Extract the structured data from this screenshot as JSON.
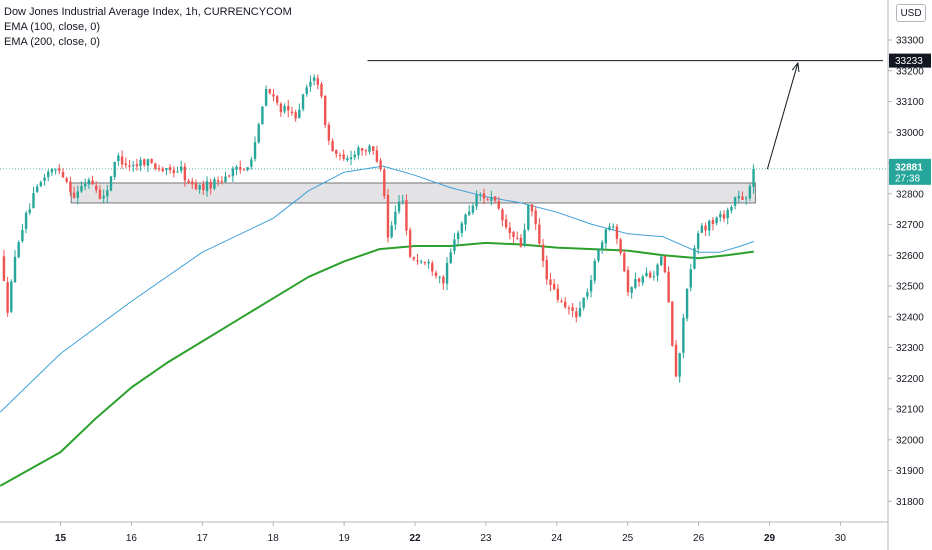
{
  "legend": {
    "symbol": "Dow Jones Industrial Average Index, 1h, CURRENCYCOM",
    "ema100": "EMA (100, close, 0)",
    "ema200": "EMA (200, close, 0)"
  },
  "currency_button": "USD",
  "price_labels": {
    "target": "33233",
    "last": "32881",
    "countdown": "27:38"
  },
  "colors": {
    "up": "#26a69a",
    "down": "#ef5350",
    "ema100": "#3fa0d8",
    "ema200": "#2ca02c",
    "zone_fill": "#d9d9de",
    "target_label_bg": "#131722",
    "last_label_bg": "#26a69a"
  },
  "chart_data": {
    "type": "candlestick",
    "symbol": "Dow Jones Industrial Average Index",
    "interval": "1h",
    "source": "CURRENCYCOM",
    "y_ticks": [
      31800,
      31900,
      32000,
      32100,
      32200,
      32300,
      32400,
      32500,
      32600,
      32700,
      32800,
      32900,
      33000,
      33100,
      33200,
      33300
    ],
    "ylim": [
      31760,
      33400
    ],
    "x_ticks": [
      {
        "label": "15",
        "pos": 0,
        "bold": true
      },
      {
        "label": "16",
        "pos": 1,
        "bold": false
      },
      {
        "label": "17",
        "pos": 2,
        "bold": false
      },
      {
        "label": "18",
        "pos": 3,
        "bold": false
      },
      {
        "label": "19",
        "pos": 4,
        "bold": false
      },
      {
        "label": "22",
        "pos": 5,
        "bold": true
      },
      {
        "label": "23",
        "pos": 6,
        "bold": false
      },
      {
        "label": "24",
        "pos": 7,
        "bold": false
      },
      {
        "label": "25",
        "pos": 8,
        "bold": false
      },
      {
        "label": "26",
        "pos": 9,
        "bold": false
      },
      {
        "label": "29",
        "pos": 10,
        "bold": true
      },
      {
        "label": "30",
        "pos": 11,
        "bold": false
      }
    ],
    "price_path": [
      [
        -0.85,
        32600
      ],
      [
        -0.75,
        32420
      ],
      [
        -0.6,
        32650
      ],
      [
        -0.4,
        32780
      ],
      [
        -0.2,
        32870
      ],
      [
        0.0,
        32880
      ],
      [
        0.2,
        32790
      ],
      [
        0.4,
        32850
      ],
      [
        0.6,
        32780
      ],
      [
        0.8,
        32920
      ],
      [
        1.0,
        32890
      ],
      [
        1.2,
        32910
      ],
      [
        1.5,
        32870
      ],
      [
        1.7,
        32880
      ],
      [
        1.8,
        32830
      ],
      [
        2.0,
        32820
      ],
      [
        2.2,
        32840
      ],
      [
        2.4,
        32870
      ],
      [
        2.6,
        32880
      ],
      [
        2.7,
        32930
      ],
      [
        2.8,
        33020
      ],
      [
        2.9,
        33140
      ],
      [
        3.1,
        33080
      ],
      [
        3.3,
        33050
      ],
      [
        3.5,
        33150
      ],
      [
        3.6,
        33200
      ],
      [
        3.7,
        33080
      ],
      [
        3.8,
        32950
      ],
      [
        4.0,
        32900
      ],
      [
        4.2,
        32950
      ],
      [
        4.4,
        32940
      ],
      [
        4.55,
        32880
      ],
      [
        4.6,
        32640
      ],
      [
        4.75,
        32760
      ],
      [
        4.85,
        32800
      ],
      [
        4.9,
        32600
      ],
      [
        5.2,
        32570
      ],
      [
        5.4,
        32520
      ],
      [
        5.6,
        32680
      ],
      [
        5.9,
        32800
      ],
      [
        6.1,
        32780
      ],
      [
        6.3,
        32680
      ],
      [
        6.5,
        32630
      ],
      [
        6.6,
        32760
      ],
      [
        6.7,
        32700
      ],
      [
        6.8,
        32580
      ],
      [
        6.9,
        32500
      ],
      [
        7.1,
        32430
      ],
      [
        7.3,
        32410
      ],
      [
        7.5,
        32530
      ],
      [
        7.6,
        32640
      ],
      [
        7.8,
        32710
      ],
      [
        7.9,
        32620
      ],
      [
        8.0,
        32490
      ],
      [
        8.2,
        32530
      ],
      [
        8.4,
        32550
      ],
      [
        8.5,
        32600
      ],
      [
        8.55,
        32500
      ],
      [
        8.6,
        32390
      ],
      [
        8.65,
        32250
      ],
      [
        8.7,
        32180
      ],
      [
        8.8,
        32450
      ],
      [
        8.9,
        32560
      ],
      [
        9.0,
        32680
      ],
      [
        9.2,
        32710
      ],
      [
        9.4,
        32740
      ],
      [
        9.55,
        32800
      ],
      [
        9.65,
        32760
      ],
      [
        9.75,
        32840
      ],
      [
        9.78,
        32881
      ]
    ],
    "ema100": [
      [
        -0.85,
        32090
      ],
      [
        0.0,
        32280
      ],
      [
        1.0,
        32450
      ],
      [
        2.0,
        32610
      ],
      [
        3.0,
        32720
      ],
      [
        3.5,
        32810
      ],
      [
        4.0,
        32870
      ],
      [
        4.55,
        32890
      ],
      [
        5.0,
        32860
      ],
      [
        5.5,
        32820
      ],
      [
        6.0,
        32790
      ],
      [
        6.5,
        32770
      ],
      [
        7.0,
        32740
      ],
      [
        7.5,
        32700
      ],
      [
        8.0,
        32670
      ],
      [
        8.5,
        32660
      ],
      [
        9.0,
        32610
      ],
      [
        9.3,
        32610
      ],
      [
        9.6,
        32630
      ],
      [
        9.78,
        32645
      ]
    ],
    "ema200": [
      [
        -0.85,
        31850
      ],
      [
        0.0,
        31960
      ],
      [
        0.5,
        32070
      ],
      [
        1.0,
        32170
      ],
      [
        1.5,
        32250
      ],
      [
        2.0,
        32320
      ],
      [
        2.5,
        32390
      ],
      [
        3.0,
        32460
      ],
      [
        3.5,
        32530
      ],
      [
        4.0,
        32580
      ],
      [
        4.5,
        32620
      ],
      [
        5.0,
        32630
      ],
      [
        5.5,
        32630
      ],
      [
        6.0,
        32640
      ],
      [
        6.5,
        32635
      ],
      [
        7.0,
        32625
      ],
      [
        7.5,
        32620
      ],
      [
        8.0,
        32615
      ],
      [
        8.5,
        32600
      ],
      [
        9.0,
        32590
      ],
      [
        9.4,
        32600
      ],
      [
        9.78,
        32612
      ]
    ],
    "annotations": {
      "resistance_line": {
        "x_start": 4.33,
        "x_end": 11.6,
        "y": 33233
      },
      "support_zone": {
        "x_start": 0.15,
        "x_end": 9.8,
        "y_low": 32770,
        "y_high": 32835
      },
      "arrow": {
        "from": [
          9.97,
          32880
        ],
        "to": [
          10.4,
          33225
        ]
      },
      "last_price_line": 32881
    }
  }
}
